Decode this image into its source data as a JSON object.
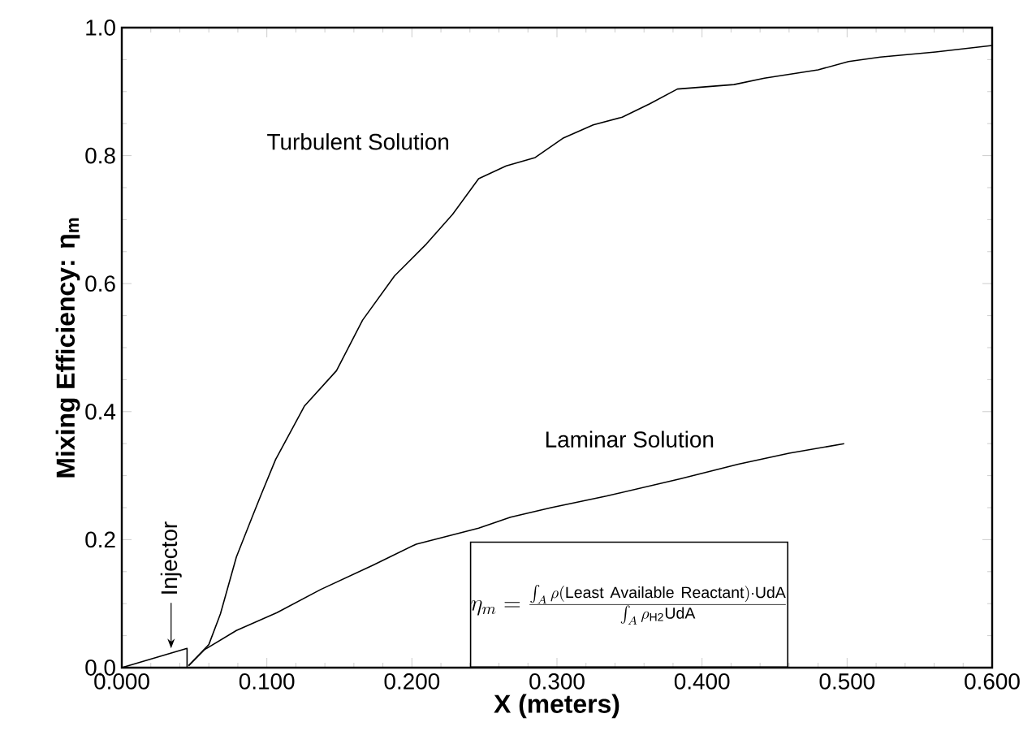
{
  "chart_data": {
    "type": "line",
    "xlabel": "X (meters)",
    "ylabel": "Mixing Efficiency: η$_{m}$",
    "xlim": [
      0,
      0.6
    ],
    "ylim": [
      0,
      1.0
    ],
    "xticks": [
      {
        "value": 0,
        "label": "0.000"
      },
      {
        "value": 0.1,
        "label": "0.100"
      },
      {
        "value": 0.2,
        "label": "0.200"
      },
      {
        "value": 0.3,
        "label": "0.300"
      },
      {
        "value": 0.4,
        "label": "0.400"
      },
      {
        "value": 0.5,
        "label": "0.500"
      },
      {
        "value": 0.6,
        "label": "0.600"
      }
    ],
    "yticks": [
      {
        "value": 0,
        "label": "0.0"
      },
      {
        "value": 0.2,
        "label": "0.2"
      },
      {
        "value": 0.4,
        "label": "0.4"
      },
      {
        "value": 0.6,
        "label": "0.6"
      },
      {
        "value": 0.8,
        "label": "0.8"
      },
      {
        "value": 1.0,
        "label": "1.0"
      }
    ],
    "grid": false,
    "series": [
      {
        "name": "Turbulent Solution",
        "color": "#000000",
        "x": [
          0.046,
          0.06,
          0.068,
          0.079,
          0.09,
          0.096,
          0.106,
          0.126,
          0.148,
          0.166,
          0.188,
          0.21,
          0.228,
          0.246,
          0.265,
          0.285,
          0.304,
          0.325,
          0.345,
          0.364,
          0.383,
          0.422,
          0.443,
          0.48,
          0.501,
          0.523,
          0.561,
          0.6
        ],
        "values": [
          0.003,
          0.036,
          0.084,
          0.173,
          0.236,
          0.27,
          0.325,
          0.409,
          0.464,
          0.543,
          0.612,
          0.662,
          0.708,
          0.764,
          0.784,
          0.797,
          0.827,
          0.848,
          0.86,
          0.881,
          0.904,
          0.911,
          0.921,
          0.934,
          0.947,
          0.954,
          0.962,
          0.972
        ]
      },
      {
        "name": "Laminar Solution",
        "color": "#000000",
        "x": [
          0.046,
          0.057,
          0.079,
          0.107,
          0.137,
          0.173,
          0.203,
          0.246,
          0.268,
          0.296,
          0.334,
          0.385,
          0.425,
          0.46,
          0.498
        ],
        "values": [
          0.003,
          0.028,
          0.058,
          0.086,
          0.122,
          0.16,
          0.193,
          0.218,
          0.235,
          0.25,
          0.268,
          0.295,
          0.318,
          0.335,
          0.35
        ]
      },
      {
        "color": "#000000",
        "x": [
          0,
          0.045,
          0.045
        ],
        "values": [
          0,
          0.03,
          0
        ]
      }
    ],
    "annotations": [
      {
        "text": "Injector",
        "x": 0.034,
        "y": 0.03
      },
      "\\eta_m = \\frac{\\int_A\\rho(\\mathrm{Least\\ Available\\ Reactant})\\cdot \\mathrm{UdA}}{\\int_A\\rho_{\\mathrm{H2}}\\mathrm{UdA}}"
    ]
  }
}
